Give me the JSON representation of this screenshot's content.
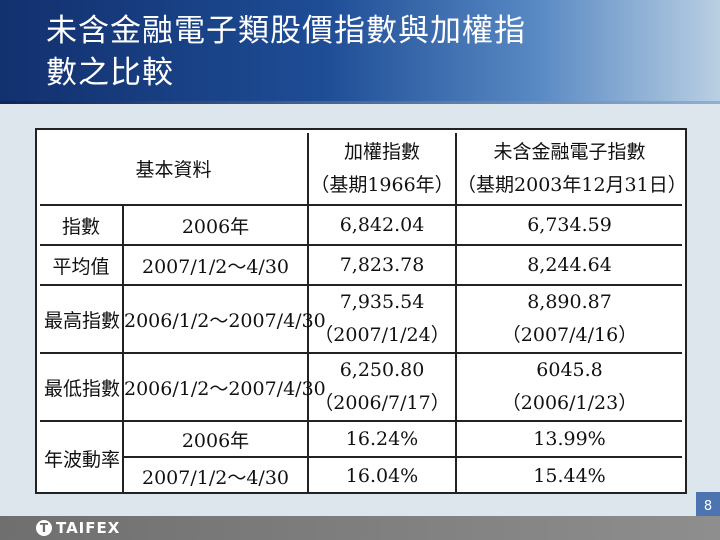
{
  "slide": {
    "title": "未含金融電子類股價指數與加權指\n數之比較",
    "page_number": "8"
  },
  "table": {
    "header": {
      "basic": "基本資料",
      "col1_name": "加權指數",
      "col1_base": "（基期1966年）",
      "col2_name": "未含金融電子指數",
      "col2_base": "（基期2003年12月31日）"
    },
    "index": {
      "label": "指數",
      "period": "2006年",
      "col1": "6,842.04",
      "col2": "6,734.59"
    },
    "average": {
      "label": "平均值",
      "period": "2007/1/2～4/30",
      "col1": "7,823.78",
      "col2": "8,244.64"
    },
    "highest": {
      "label": "最高指數",
      "period": "2006/1/2～2007/4/30",
      "col1_value": "7,935.54",
      "col1_date": "（2007/1/24）",
      "col2_value": "8,890.87",
      "col2_date": "（2007/4/16）"
    },
    "lowest": {
      "label": "最低指數",
      "period": "2006/1/2～2007/4/30",
      "col1_value": "6,250.80",
      "col1_date": "（2006/7/17）",
      "col2_value": "6045.8",
      "col2_date": "（2006/1/23）"
    },
    "volatility": {
      "label": "年波動率",
      "period1": "2006年",
      "period1_col1": "16.24%",
      "period1_col2": "13.99%",
      "period2": "2007/1/2～4/30",
      "period2_col1": "16.04%",
      "period2_col2": "15.44%"
    }
  },
  "footer": {
    "logo_mark": "T",
    "logo_text": "TAIFEX"
  }
}
